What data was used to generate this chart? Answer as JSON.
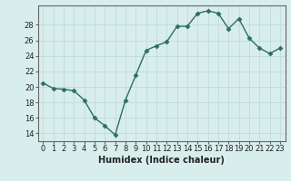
{
  "x": [
    0,
    1,
    2,
    3,
    4,
    5,
    6,
    7,
    8,
    9,
    10,
    11,
    12,
    13,
    14,
    15,
    16,
    17,
    18,
    19,
    20,
    21,
    22,
    23
  ],
  "y": [
    20.5,
    19.8,
    19.7,
    19.5,
    18.3,
    16.0,
    15.0,
    13.8,
    18.3,
    21.5,
    24.7,
    25.3,
    25.8,
    27.8,
    27.8,
    29.5,
    29.8,
    29.5,
    27.5,
    28.8,
    26.3,
    25.0,
    24.3,
    25.0
  ],
  "line_color": "#2d6e65",
  "marker": "D",
  "marker_size": 2.5,
  "bg_color": "#d8eeec",
  "grid_color": "#c0dbd8",
  "xlabel": "Humidex (Indice chaleur)",
  "xlim": [
    -0.5,
    23.5
  ],
  "ylim": [
    13.0,
    30.5
  ],
  "yticks": [
    14,
    16,
    18,
    20,
    22,
    24,
    26,
    28
  ],
  "xticks": [
    0,
    1,
    2,
    3,
    4,
    5,
    6,
    7,
    8,
    9,
    10,
    11,
    12,
    13,
    14,
    15,
    16,
    17,
    18,
    19,
    20,
    21,
    22,
    23
  ],
  "xtick_labels": [
    "0",
    "1",
    "2",
    "3",
    "4",
    "5",
    "6",
    "7",
    "8",
    "9",
    "10",
    "11",
    "12",
    "13",
    "14",
    "15",
    "16",
    "17",
    "18",
    "19",
    "20",
    "21",
    "22",
    "23"
  ],
  "xlabel_fontsize": 7,
  "tick_fontsize": 6,
  "line_width": 1.0
}
